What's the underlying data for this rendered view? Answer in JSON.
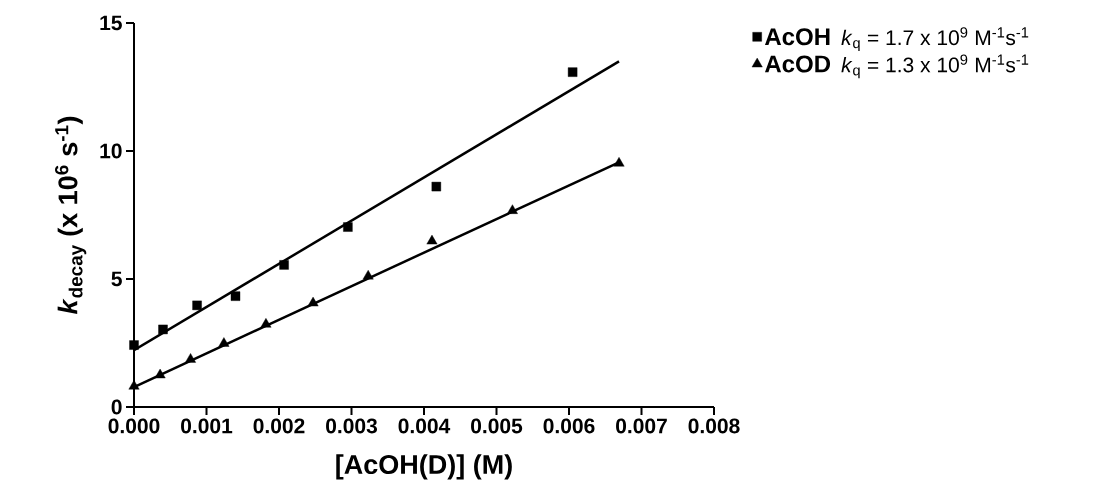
{
  "chart_data": {
    "type": "scatter",
    "xlabel": "[AcOH(D)] (M)",
    "ylabel": "*k*$_{decay}$ (x 10$^{6}$ s$^{-1}$)",
    "xlim": [
      0,
      0.008
    ],
    "ylim": [
      0,
      15
    ],
    "xticks": [
      {
        "value": 0,
        "label": "0.000"
      },
      {
        "value": 0.001,
        "label": "0.001"
      },
      {
        "value": 0.002,
        "label": "0.002"
      },
      {
        "value": 0.003,
        "label": "0.003"
      },
      {
        "value": 0.004,
        "label": "0.004"
      },
      {
        "value": 0.005,
        "label": "0.005"
      },
      {
        "value": 0.006,
        "label": "0.006"
      },
      {
        "value": 0.007,
        "label": "0.007"
      },
      {
        "value": 0.008,
        "label": "0.008"
      }
    ],
    "yticks": [
      0,
      5,
      10,
      15
    ],
    "legend": "top right",
    "annotations": [
      "*k*$_{q}$ = 1.7 x 10$^{9}$ M$^{-1}$s$^{-1}$",
      "*k*$_{q}$ = 1.3 x 10$^{9}$ M$^{-1}$s$^{-1}$"
    ],
    "series": [
      {
        "name": "AcOH",
        "color": "#000000",
        "marker": "square",
        "x": [
          0,
          0.0004,
          0.00087,
          0.0014,
          0.00207,
          0.00295,
          0.00417,
          0.00605
        ],
        "values": [
          2.42,
          3.03,
          3.97,
          4.33,
          5.55,
          7.03,
          8.61,
          13.08
        ]
      },
      {
        "name": "AcOD",
        "color": "#000000",
        "marker": "triangle",
        "x": [
          0,
          0.00036,
          0.00078,
          0.00124,
          0.00182,
          0.00247,
          0.00323,
          0.00411,
          0.00522,
          0.00669
        ],
        "values": [
          0.81,
          1.25,
          1.86,
          2.48,
          3.23,
          4.06,
          5.11,
          6.48,
          7.67,
          9.52
        ]
      },
      {
        "type": "line",
        "color": "#000000",
        "marker": "none",
        "line_style": "solid",
        "x": [
          0,
          0.00669
        ],
        "values": [
          2.22,
          13.5
        ]
      },
      {
        "type": "line",
        "color": "#000000",
        "marker": "none",
        "line_style": "solid",
        "x": [
          0,
          0.00669
        ],
        "values": [
          0.78,
          9.56
        ]
      }
    ]
  }
}
